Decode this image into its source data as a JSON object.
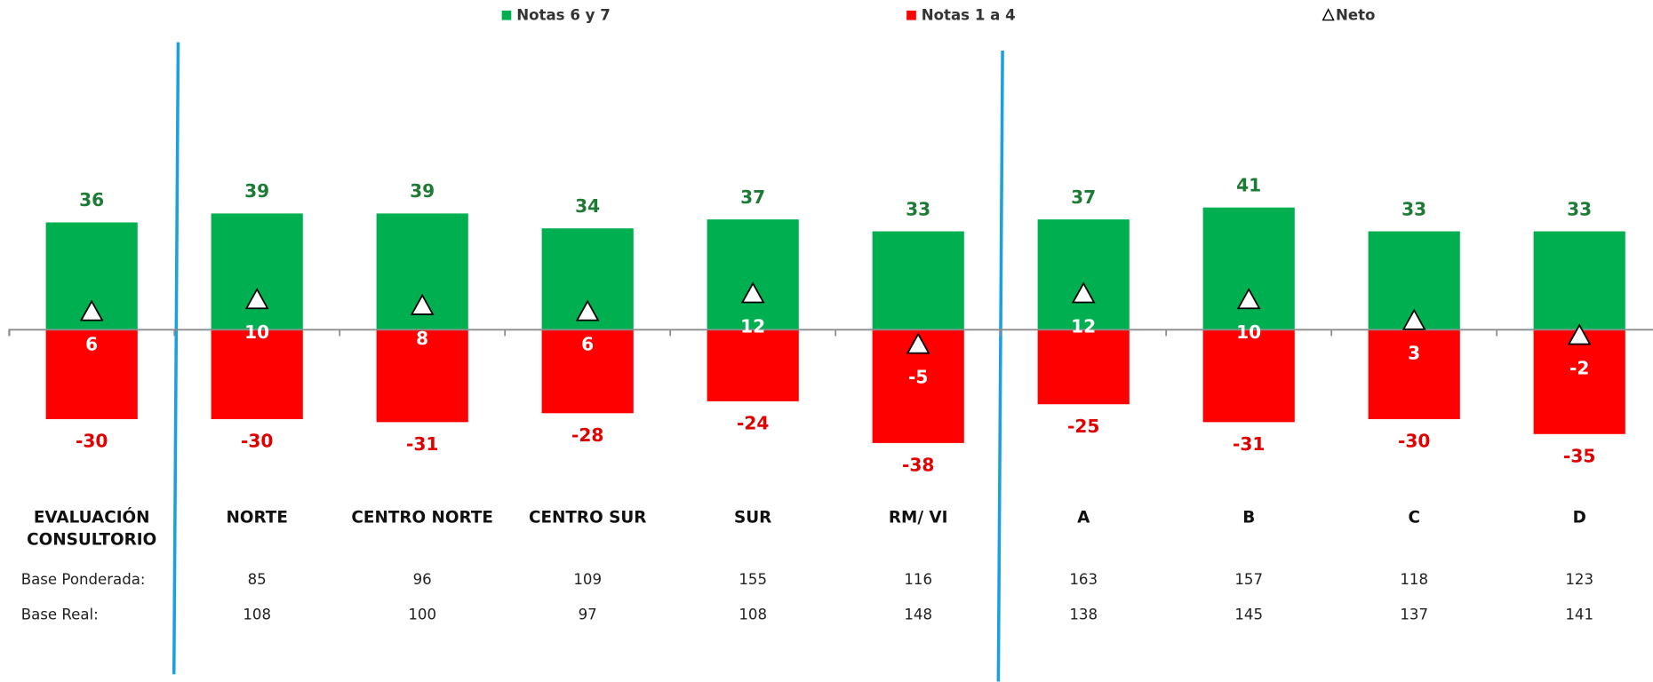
{
  "chart_data": {
    "type": "bar",
    "categories": [
      "EVALUACIÓN CONSULTORIO",
      "NORTE",
      "CENTRO NORTE",
      "CENTRO SUR",
      "SUR",
      "RM/ VI",
      "A",
      "B",
      "C",
      "D"
    ],
    "series": [
      {
        "name": "Notas 6 y 7",
        "color": "#00b050",
        "values": [
          36,
          39,
          39,
          34,
          37,
          33,
          37,
          41,
          33,
          33
        ]
      },
      {
        "name": "Notas 1 a 4",
        "color": "#ff0000",
        "values": [
          -30,
          -30,
          -31,
          -28,
          -24,
          -38,
          -25,
          -31,
          -30,
          -35
        ]
      },
      {
        "name": "Neto",
        "color": "#ffffff",
        "marker": "triangle",
        "values": [
          6,
          10,
          8,
          6,
          12,
          -5,
          12,
          10,
          3,
          -2
        ]
      }
    ]
  },
  "base_rows": [
    {
      "label": "Base Ponderada:",
      "values": [
        85,
        96,
        109,
        155,
        116,
        163,
        157,
        118,
        123
      ]
    },
    {
      "label": "Base Real:",
      "values": [
        108,
        100,
        97,
        108,
        148,
        138,
        145,
        137,
        141
      ]
    }
  ]
}
